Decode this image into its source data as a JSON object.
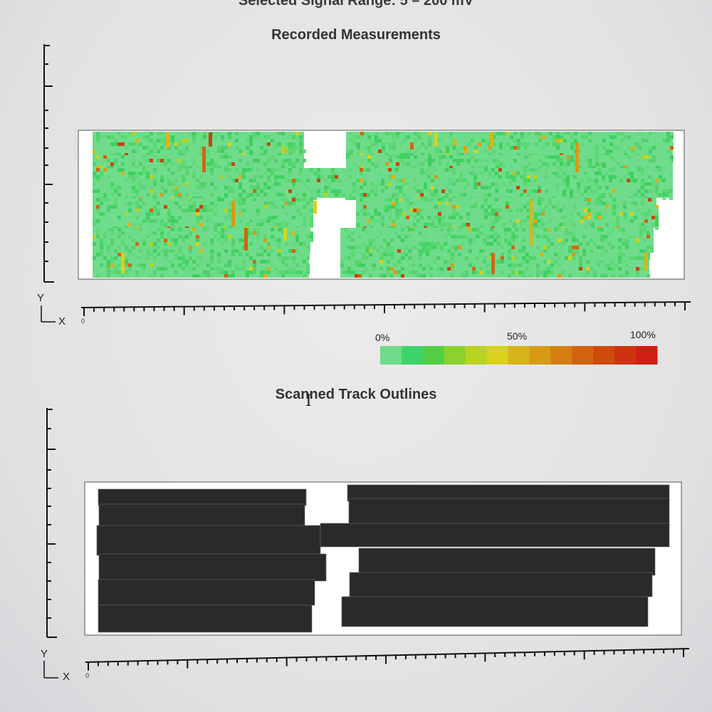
{
  "header": {
    "signal_range": "Selected Signal Range: 5 – 200 mV"
  },
  "measurements_chart": {
    "title": "Recorded Measurements",
    "y_axis_name": "Y",
    "x_axis_name": "X",
    "zero_tick": "0"
  },
  "color_scale": {
    "labels": [
      "0%",
      "50%",
      "100%"
    ],
    "colors": [
      "#6fdc8c",
      "#3fd46a",
      "#52cf44",
      "#8bd12f",
      "#b9d322",
      "#d9d11c",
      "#d8b41a",
      "#d89a16",
      "#d57e12",
      "#d2640f",
      "#cf4a0d",
      "#ce330f",
      "#d01e12"
    ]
  },
  "outlines_chart": {
    "title": "Scanned Track Outlines",
    "y_axis_name": "Y",
    "x_axis_name": "X",
    "zero_tick": "0",
    "track_color": "#2a2a2c"
  },
  "cursor": {
    "glyph": "I"
  }
}
